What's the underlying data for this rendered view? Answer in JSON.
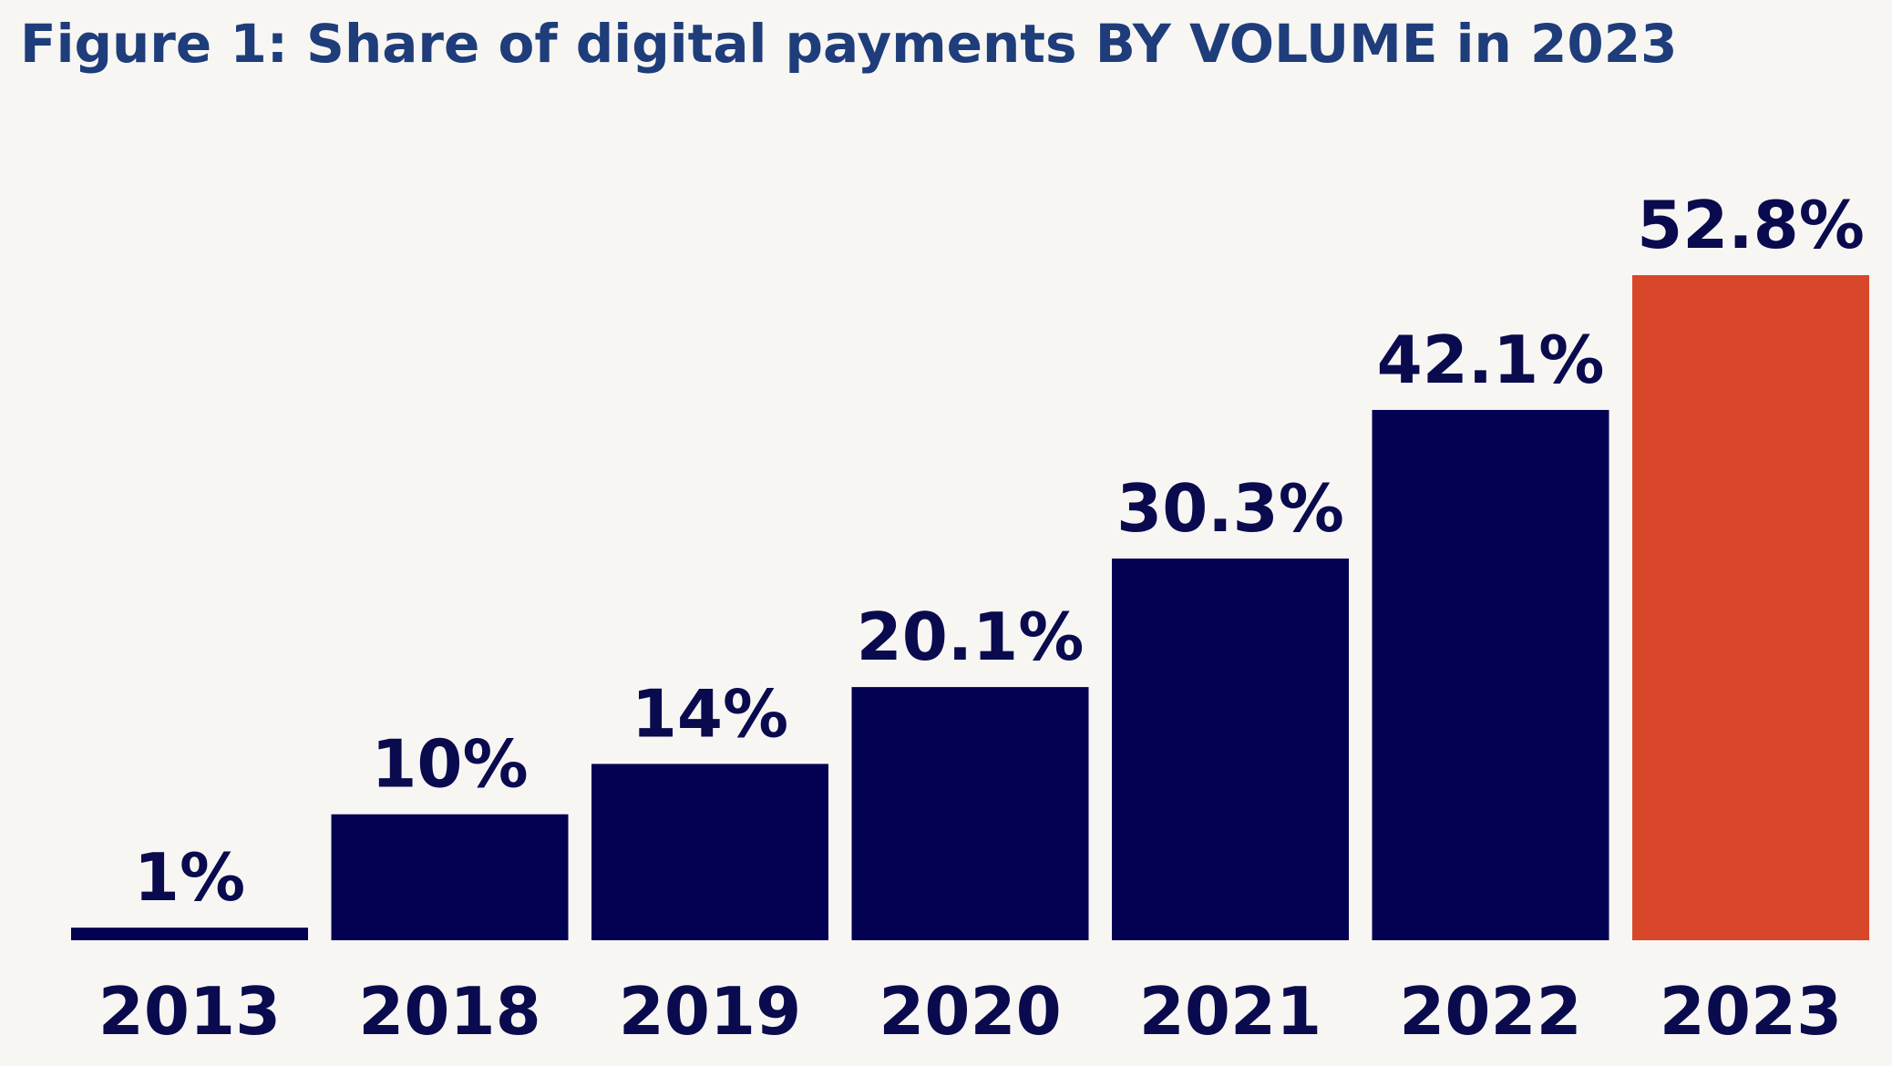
{
  "colors": {
    "background": "#f8f6f3",
    "title": "#1e3d7a",
    "bar": "#020152",
    "highlight_bar": "#d9472b",
    "label": "#0a0a4e"
  },
  "chart_data": {
    "type": "bar",
    "title": "Figure 1: Share of digital payments BY VOLUME in 2023",
    "xlabel": "",
    "ylabel": "",
    "categories": [
      "2013",
      "2018",
      "2019",
      "2020",
      "2021",
      "2022",
      "2023"
    ],
    "values": [
      1,
      10,
      14,
      20.1,
      30.3,
      42.1,
      52.8
    ],
    "value_labels": [
      "1%",
      "10%",
      "14%",
      "20.1%",
      "30.3%",
      "42.1%",
      "52.8%"
    ],
    "highlight_category": "2023",
    "ylim": [
      0,
      52.8
    ],
    "grid": false,
    "legend": "none"
  }
}
